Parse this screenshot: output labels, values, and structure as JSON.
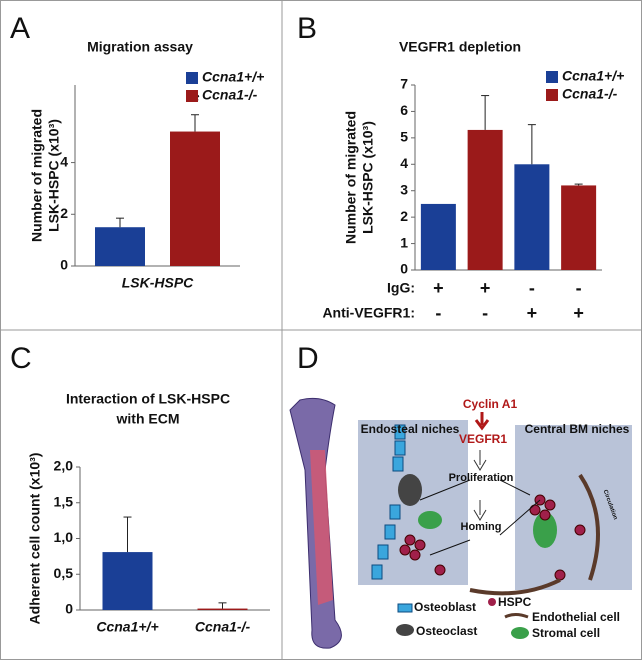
{
  "panel_labels": [
    "A",
    "B",
    "C",
    "D"
  ],
  "chart_data": [
    {
      "type": "bar",
      "title": [
        "Migration assay"
      ],
      "y_label": [
        "Number of migrated",
        "LSK-HSPC (x10³)"
      ],
      "categories": [
        "LSK-HSPC"
      ],
      "series": [
        {
          "name": "Ccna1+/+",
          "color": "#1a3f96",
          "values": [
            1.5
          ],
          "errors": [
            0.35
          ]
        },
        {
          "name": "Ccna1-/-",
          "color": "#9b1a1a",
          "values": [
            5.2
          ],
          "errors": [
            0.65
          ]
        }
      ],
      "annotation": "*",
      "ylim": [
        0,
        7
      ],
      "yticks": [
        0,
        2,
        4
      ]
    },
    {
      "type": "bar",
      "title": [
        "VEGFR1 depletion"
      ],
      "y_label": [
        "Number of migrated",
        "LSK-HSPC (x10³)"
      ],
      "categories": [
        null,
        null,
        null,
        null
      ],
      "series": [
        {
          "name": "Ccna1+/+",
          "color": "#1a3f96",
          "values": [
            2.5,
            null,
            4.0,
            null
          ],
          "errors": [
            null,
            null,
            1.5,
            null
          ]
        },
        {
          "name": "Ccna1-/-",
          "color": "#9b1a1a",
          "values": [
            null,
            5.3,
            null,
            3.2
          ],
          "errors": [
            null,
            1.3,
            null,
            0.05
          ]
        }
      ],
      "conditions": [
        {
          "label": "IgG:",
          "values": [
            "+",
            "+",
            "-",
            "-"
          ]
        },
        {
          "label": "Anti-VEGFR1:",
          "values": [
            "-",
            "-",
            "+",
            "+"
          ]
        }
      ],
      "ylim": [
        0,
        7
      ],
      "yticks": [
        0,
        1,
        2,
        3,
        4,
        5,
        6,
        7
      ]
    },
    {
      "type": "bar",
      "title": [
        "Interaction of LSK-HSPC",
        "with ECM"
      ],
      "y_label": [
        "Adherent cell count (x10³)"
      ],
      "categories": [
        "Ccna1+/+",
        "Ccna1-/-"
      ],
      "values": [
        0.81,
        0.02
      ],
      "errors": [
        0.49,
        0.08
      ],
      "colors": [
        "#1a3f96",
        "#9b1a1a"
      ],
      "ylim": [
        0,
        2.0
      ],
      "yticks": [
        0,
        {
          "value": 0.5,
          "label": "0,5"
        },
        {
          "value": 1.0,
          "label": "1,0"
        },
        {
          "value": 1.5,
          "label": "1,5"
        },
        {
          "value": 2.0,
          "label": "2,0"
        }
      ]
    }
  ],
  "diagram": {
    "cyclin": "Cyclin A1",
    "vegfr": "VEGFR1",
    "endosteal": "Endosteal niches",
    "central": "Central BM niches",
    "proliferation": "Proliferation",
    "homing": "Homing",
    "circulation": "Circulation",
    "legend": [
      "Osteoblast",
      "Osteoclast",
      "HSPC",
      "Endothelial cell",
      "Stromal cell"
    ]
  }
}
